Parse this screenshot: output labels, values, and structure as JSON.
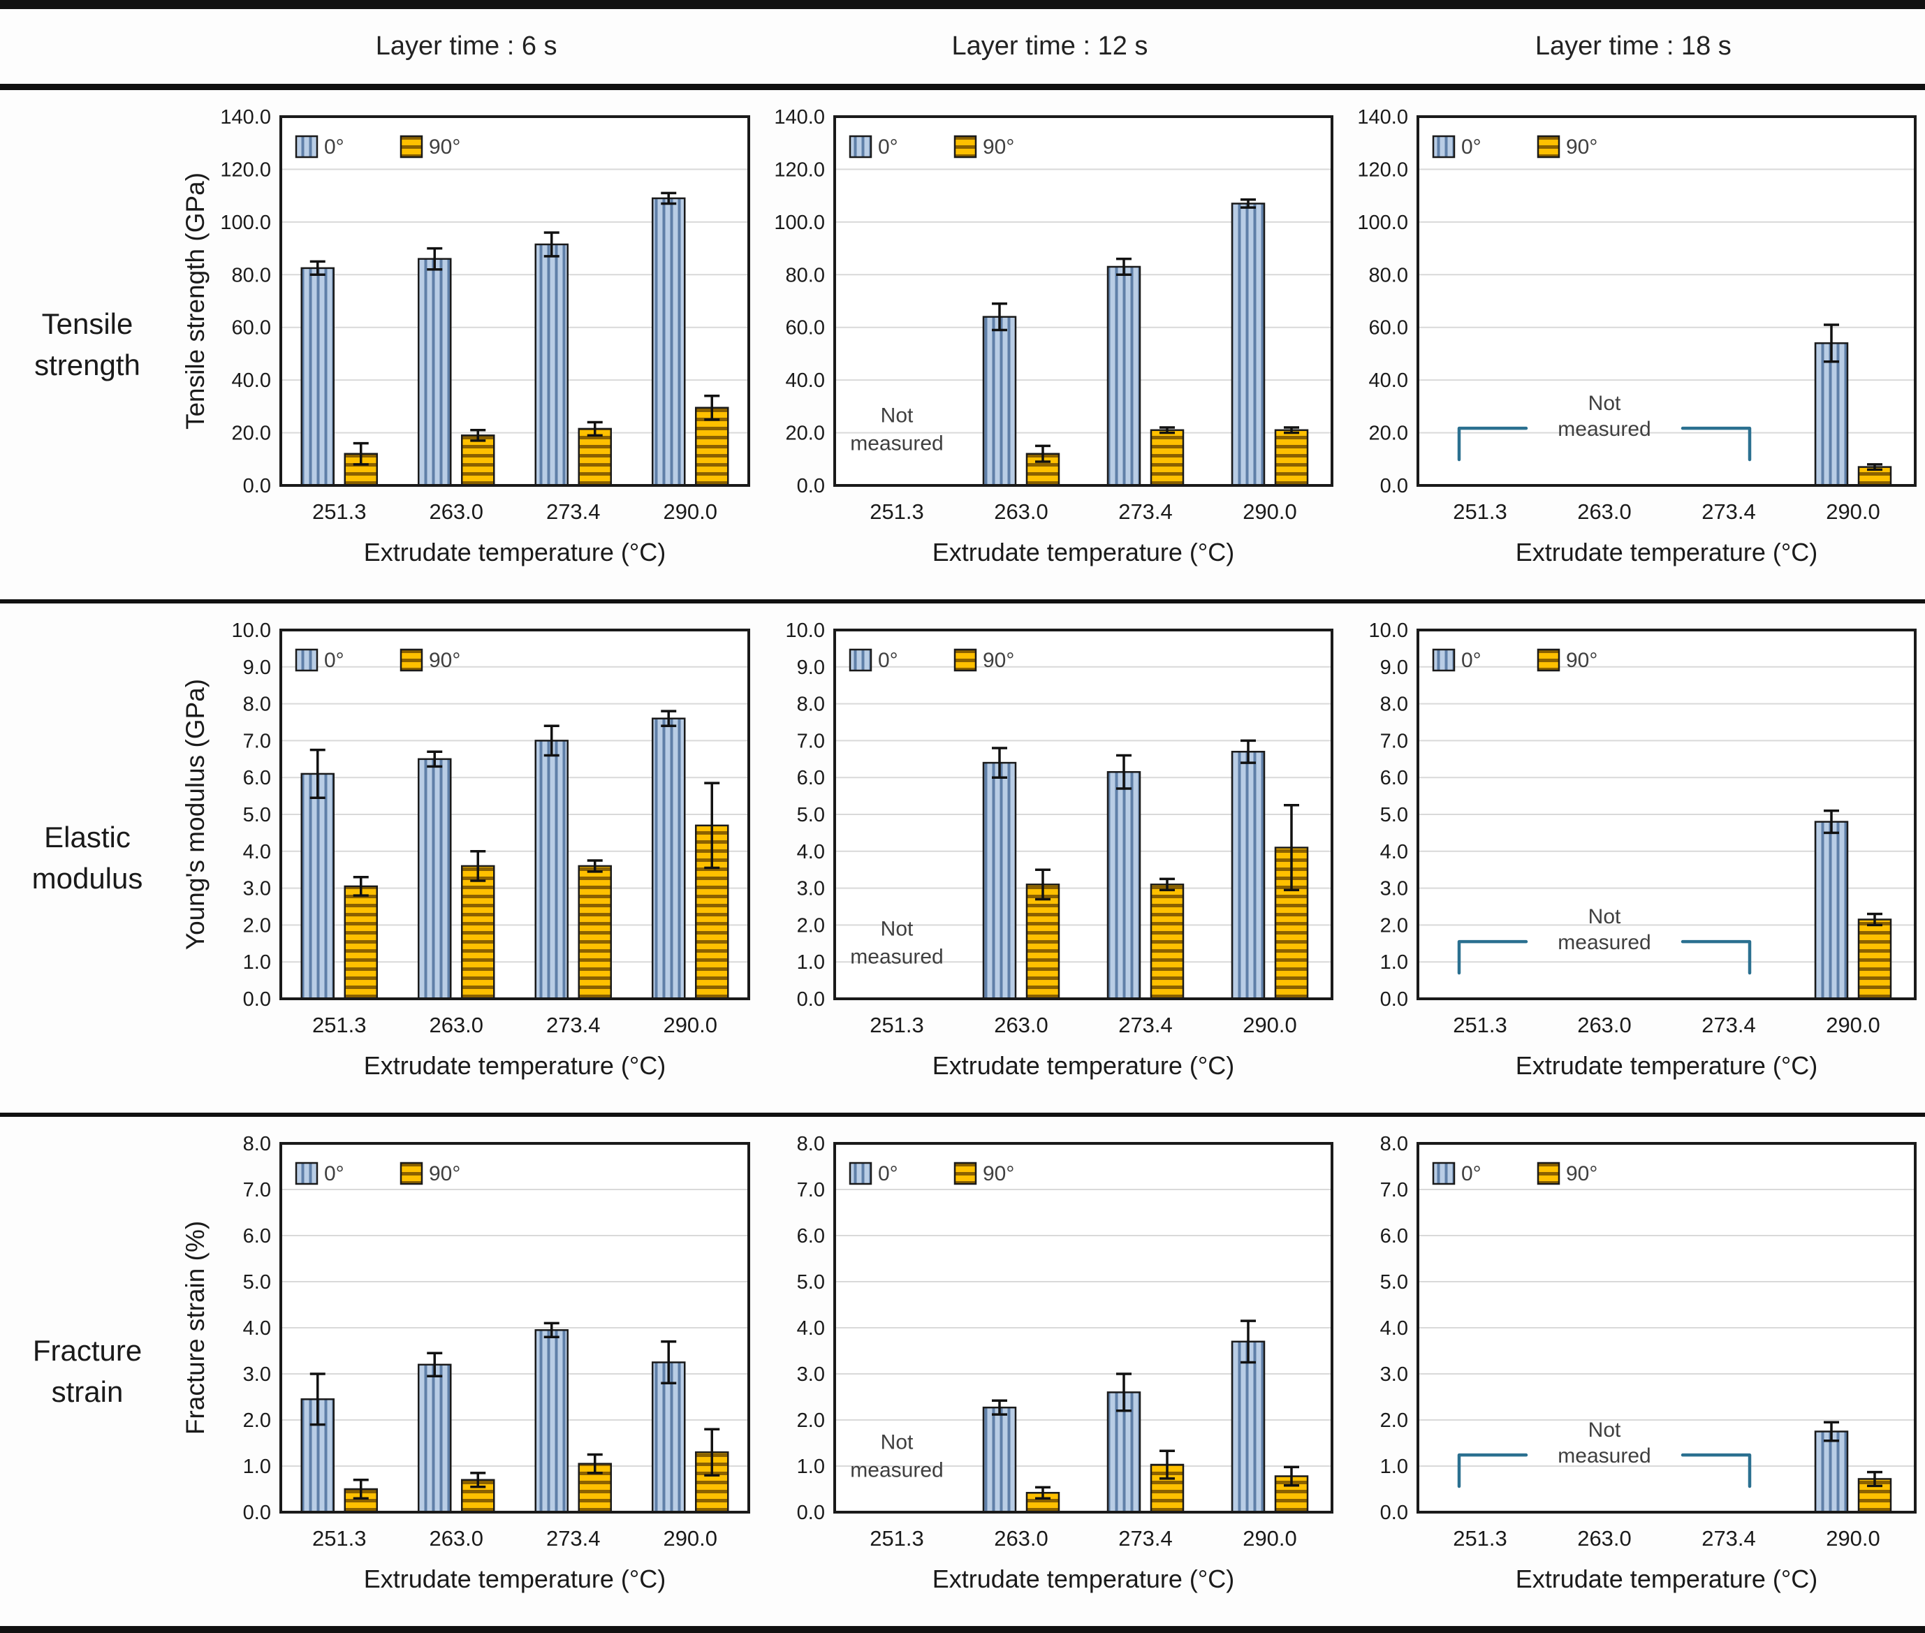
{
  "page": {
    "column_headers": [
      "Layer time : 6 s",
      "Layer time : 12 s",
      "Layer time : 18 s"
    ],
    "row_labels": [
      "Tensile strength",
      "Elastic modulus",
      "Fracture strain"
    ],
    "not_measured_lines": [
      "Not",
      "measured"
    ]
  },
  "colors": {
    "bar_0deg_fill": "#b9cde5",
    "bar_0deg_stripe": "#5f7fa8",
    "bar_90deg_fill": "#ffc000",
    "bar_90deg_stripe": "#8a6100",
    "bar_outline": "#1a1a1a",
    "error_bar": "#111111",
    "gridline": "#d9d9d9",
    "plot_border": "#1a1a1a",
    "bracket": "#2b7090",
    "annotation_text": "#3f3f3f",
    "legend_text": "#3f3f3f",
    "tick_text": "#1a1a1a"
  },
  "chart_data": [
    {
      "type": "bar",
      "row_label": "Tensile strength",
      "column_label": "Layer time : 6 s",
      "ylabel": "Tensile strength (GPa)",
      "xlabel": "Extrudate temperature (°C)",
      "ylim": [
        0,
        140
      ],
      "ytick_step": 20,
      "grid": true,
      "legend_position": "top-left",
      "categories": [
        "251.3",
        "263.0",
        "273.4",
        "290.0"
      ],
      "series": [
        {
          "name": "0°",
          "values": [
            82.5,
            86.0,
            91.5,
            109.0
          ],
          "errors": [
            2.5,
            4.0,
            4.5,
            2.0
          ]
        },
        {
          "name": "90°",
          "values": [
            12.0,
            19.0,
            21.5,
            29.5
          ],
          "errors": [
            4.0,
            2.0,
            2.5,
            4.5
          ]
        }
      ],
      "not_measured": null
    },
    {
      "type": "bar",
      "row_label": "Tensile strength",
      "column_label": "Layer time : 12 s",
      "xlabel": "Extrudate temperature (°C)",
      "ylim": [
        0,
        140
      ],
      "ytick_step": 20,
      "grid": true,
      "legend_position": "top-left",
      "categories": [
        "251.3",
        "263.0",
        "273.4",
        "290.0"
      ],
      "series": [
        {
          "name": "0°",
          "values": [
            null,
            64.0,
            83.0,
            107.0
          ],
          "errors": [
            null,
            5.0,
            3.0,
            1.5
          ]
        },
        {
          "name": "90°",
          "values": [
            null,
            12.0,
            21.0,
            21.0
          ],
          "errors": [
            null,
            3.0,
            1.0,
            1.0
          ]
        }
      ],
      "not_measured": {
        "span": [
          0,
          0
        ],
        "bracket": false
      }
    },
    {
      "type": "bar",
      "row_label": "Tensile strength",
      "column_label": "Layer time : 18 s",
      "xlabel": "Extrudate temperature (°C)",
      "ylim": [
        0,
        140
      ],
      "ytick_step": 20,
      "grid": true,
      "legend_position": "top-left",
      "categories": [
        "251.3",
        "263.0",
        "273.4",
        "290.0"
      ],
      "series": [
        {
          "name": "0°",
          "values": [
            null,
            null,
            null,
            54.0
          ],
          "errors": [
            null,
            null,
            null,
            7.0
          ]
        },
        {
          "name": "90°",
          "values": [
            null,
            null,
            null,
            7.0
          ],
          "errors": [
            null,
            null,
            null,
            1.0
          ]
        }
      ],
      "not_measured": {
        "span": [
          0,
          2
        ],
        "bracket": true
      }
    },
    {
      "type": "bar",
      "row_label": "Elastic modulus",
      "column_label": "Layer time : 6 s",
      "ylabel": "Young's modulus (GPa)",
      "xlabel": "Extrudate temperature (°C)",
      "ylim": [
        0,
        10
      ],
      "ytick_step": 1,
      "grid": true,
      "legend_position": "top-left",
      "categories": [
        "251.3",
        "263.0",
        "273.4",
        "290.0"
      ],
      "series": [
        {
          "name": "0°",
          "values": [
            6.1,
            6.5,
            7.0,
            7.6
          ],
          "errors": [
            0.65,
            0.2,
            0.4,
            0.2
          ]
        },
        {
          "name": "90°",
          "values": [
            3.05,
            3.6,
            3.6,
            4.7
          ],
          "errors": [
            0.25,
            0.4,
            0.15,
            1.15
          ]
        }
      ],
      "not_measured": null
    },
    {
      "type": "bar",
      "row_label": "Elastic modulus",
      "column_label": "Layer time : 12 s",
      "xlabel": "Extrudate temperature (°C)",
      "ylim": [
        0,
        10
      ],
      "ytick_step": 1,
      "grid": true,
      "legend_position": "top-left",
      "categories": [
        "251.3",
        "263.0",
        "273.4",
        "290.0"
      ],
      "series": [
        {
          "name": "0°",
          "values": [
            null,
            6.4,
            6.15,
            6.7
          ],
          "errors": [
            null,
            0.4,
            0.45,
            0.3
          ]
        },
        {
          "name": "90°",
          "values": [
            null,
            3.1,
            3.1,
            4.1
          ],
          "errors": [
            null,
            0.4,
            0.15,
            1.15
          ]
        }
      ],
      "not_measured": {
        "span": [
          0,
          0
        ],
        "bracket": false
      }
    },
    {
      "type": "bar",
      "row_label": "Elastic modulus",
      "column_label": "Layer time : 18 s",
      "xlabel": "Extrudate temperature (°C)",
      "ylim": [
        0,
        10
      ],
      "ytick_step": 1,
      "grid": true,
      "legend_position": "top-left",
      "categories": [
        "251.3",
        "263.0",
        "273.4",
        "290.0"
      ],
      "series": [
        {
          "name": "0°",
          "values": [
            null,
            null,
            null,
            4.8
          ],
          "errors": [
            null,
            null,
            null,
            0.3
          ]
        },
        {
          "name": "90°",
          "values": [
            null,
            null,
            null,
            2.15
          ],
          "errors": [
            null,
            null,
            null,
            0.15
          ]
        }
      ],
      "not_measured": {
        "span": [
          0,
          2
        ],
        "bracket": true
      }
    },
    {
      "type": "bar",
      "row_label": "Fracture strain",
      "column_label": "Layer time : 6 s",
      "ylabel": "Fracture strain (%)",
      "xlabel": "Extrudate temperature (°C)",
      "ylim": [
        0,
        8
      ],
      "ytick_step": 1,
      "grid": true,
      "legend_position": "top-left",
      "categories": [
        "251.3",
        "263.0",
        "273.4",
        "290.0"
      ],
      "series": [
        {
          "name": "0°",
          "values": [
            2.45,
            3.2,
            3.95,
            3.25
          ],
          "errors": [
            0.55,
            0.25,
            0.15,
            0.45
          ]
        },
        {
          "name": "90°",
          "values": [
            0.5,
            0.7,
            1.05,
            1.3
          ],
          "errors": [
            0.2,
            0.15,
            0.2,
            0.5
          ]
        }
      ],
      "not_measured": null
    },
    {
      "type": "bar",
      "row_label": "Fracture strain",
      "column_label": "Layer time : 12 s",
      "xlabel": "Extrudate temperature (°C)",
      "ylim": [
        0,
        8
      ],
      "ytick_step": 1,
      "grid": true,
      "legend_position": "top-left",
      "categories": [
        "251.3",
        "263.0",
        "273.4",
        "290.0"
      ],
      "series": [
        {
          "name": "0°",
          "values": [
            null,
            2.27,
            2.6,
            3.7
          ],
          "errors": [
            null,
            0.15,
            0.4,
            0.45
          ]
        },
        {
          "name": "90°",
          "values": [
            null,
            0.42,
            1.03,
            0.78
          ],
          "errors": [
            null,
            0.12,
            0.3,
            0.2
          ]
        }
      ],
      "not_measured": {
        "span": [
          0,
          0
        ],
        "bracket": false
      }
    },
    {
      "type": "bar",
      "row_label": "Fracture strain",
      "column_label": "Layer time : 18 s",
      "xlabel": "Extrudate temperature (°C)",
      "ylim": [
        0,
        8
      ],
      "ytick_step": 1,
      "grid": true,
      "legend_position": "top-left",
      "categories": [
        "251.3",
        "263.0",
        "273.4",
        "290.0"
      ],
      "series": [
        {
          "name": "0°",
          "values": [
            null,
            null,
            null,
            1.75
          ],
          "errors": [
            null,
            null,
            null,
            0.2
          ]
        },
        {
          "name": "90°",
          "values": [
            null,
            null,
            null,
            0.72
          ],
          "errors": [
            null,
            null,
            null,
            0.15
          ]
        }
      ],
      "not_measured": {
        "span": [
          0,
          2
        ],
        "bracket": true
      }
    }
  ]
}
